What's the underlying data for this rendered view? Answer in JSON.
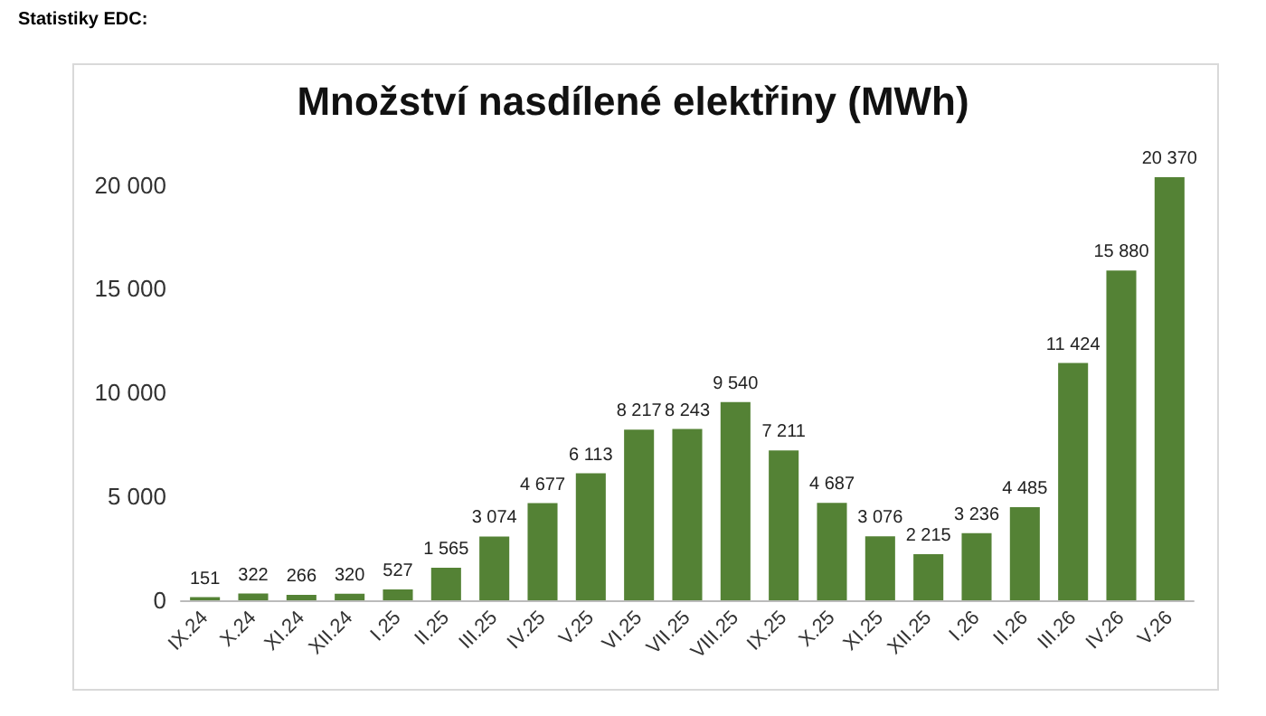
{
  "chart_data": {
    "type": "bar",
    "title": "Množství nasdílené elektřiny (MWh)",
    "annotations": [
      "Statistiky EDC:"
    ],
    "categories": [
      "IX.24",
      "X.24",
      "XI.24",
      "XII.24",
      "I.25",
      "II.25",
      "III.25",
      "IV.25",
      "V.25",
      "VI.25",
      "VII.25",
      "VIII.25",
      "IX.25",
      "X.25",
      "XI.25",
      "XII.25",
      "I.26",
      "II.26",
      "III.26",
      "IV.26",
      "V.26"
    ],
    "values": [
      151,
      322,
      266,
      320,
      527,
      1565,
      3074,
      4677,
      6113,
      8217,
      8243,
      9540,
      7211,
      4687,
      3076,
      2215,
      3236,
      4485,
      11424,
      15880,
      20370
    ],
    "value_labels": [
      "151",
      "322",
      "266",
      "320",
      "527",
      "1 565",
      "3 074",
      "4 677",
      "6 113",
      "8 217",
      "8 243",
      "9 540",
      "7 211",
      "4 687",
      "3 076",
      "2 215",
      "3 236",
      "4 485",
      "11 424",
      "15 880",
      "20 370"
    ],
    "color": "#548235",
    "ylim": [
      0,
      20370
    ],
    "yticks": [
      0,
      {
        "value": 5000,
        "label": "5 000"
      },
      {
        "value": 10000,
        "label": "10 000"
      },
      {
        "value": 15000,
        "label": "15 000"
      },
      {
        "value": 20000,
        "label": "20 000"
      }
    ],
    "grid": false
  }
}
